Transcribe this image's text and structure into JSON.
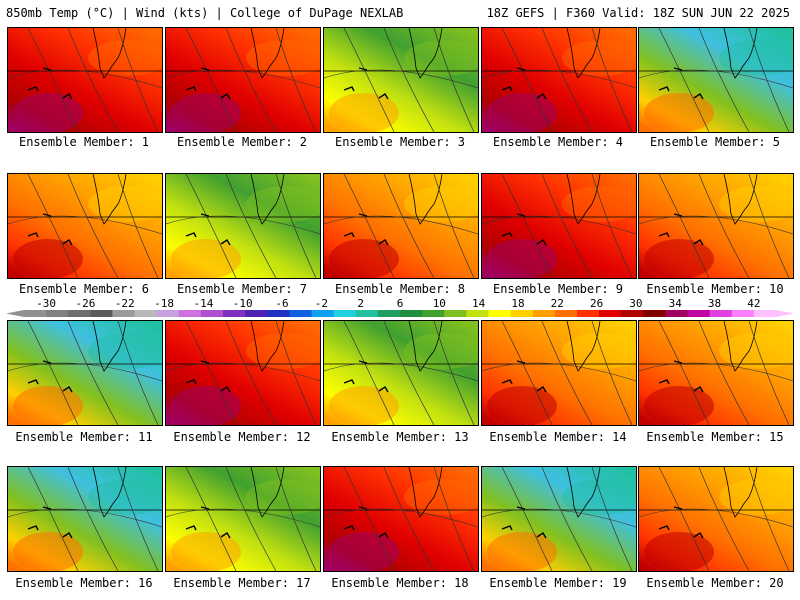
{
  "header": {
    "left": "850mb Temp (°C) | Wind (kts) | College of DuPage NEXLAB",
    "right": "18Z GEFS | F360 Valid: 18Z SUN JUN 22 2025"
  },
  "members": [
    {
      "label": "Ensemble Member: 1",
      "scheme": "hot",
      "icons": [
        "flag-icon",
        "wind-barb-icon"
      ]
    },
    {
      "label": "Ensemble Member: 2",
      "scheme": "hot"
    },
    {
      "label": "Ensemble Member: 3",
      "scheme": "green"
    },
    {
      "label": "Ensemble Member: 4",
      "scheme": "hot"
    },
    {
      "label": "Ensemble Member: 5",
      "scheme": "cool"
    },
    {
      "label": "Ensemble Member: 6",
      "scheme": "warm"
    },
    {
      "label": "Ensemble Member: 7",
      "scheme": "green"
    },
    {
      "label": "Ensemble Member: 8",
      "scheme": "warm"
    },
    {
      "label": "Ensemble Member: 9",
      "scheme": "hot"
    },
    {
      "label": "Ensemble Member: 10",
      "scheme": "warm"
    },
    {
      "label": "Ensemble Member: 11",
      "scheme": "cool"
    },
    {
      "label": "Ensemble Member: 12",
      "scheme": "hot"
    },
    {
      "label": "Ensemble Member: 13",
      "scheme": "green"
    },
    {
      "label": "Ensemble Member: 14",
      "scheme": "warm"
    },
    {
      "label": "Ensemble Member: 15",
      "scheme": "warm"
    },
    {
      "label": "Ensemble Member: 16",
      "scheme": "cool"
    },
    {
      "label": "Ensemble Member: 17",
      "scheme": "green"
    },
    {
      "label": "Ensemble Member: 18",
      "scheme": "hot"
    },
    {
      "label": "Ensemble Member: 19",
      "scheme": "cool"
    },
    {
      "label": "Ensemble Member: 20",
      "scheme": "warm"
    }
  ],
  "colorbar": {
    "ticks": [
      "-30",
      "-26",
      "-22",
      "-18",
      "-14",
      "-10",
      "-6",
      "-2",
      "2",
      "6",
      "10",
      "14",
      "18",
      "22",
      "26",
      "30",
      "34",
      "38",
      "42"
    ],
    "colors": [
      "#909090",
      "#808080",
      "#6e6e6e",
      "#5a5a5a",
      "#9a9a9a",
      "#b8b8b8",
      "#c8a0e0",
      "#d070e0",
      "#b050d0",
      "#8030c0",
      "#5020b0",
      "#2030c0",
      "#1060e0",
      "#10a0f0",
      "#20d0e0",
      "#20c0a0",
      "#20a060",
      "#209040",
      "#40a030",
      "#80c020",
      "#c0e010",
      "#ffff00",
      "#ffd000",
      "#ffa000",
      "#ff7000",
      "#ff3000",
      "#e00000",
      "#b00000",
      "#800000",
      "#a00060",
      "#c000a0",
      "#e040e0",
      "#ff80ff",
      "#ffc0ff"
    ]
  }
}
